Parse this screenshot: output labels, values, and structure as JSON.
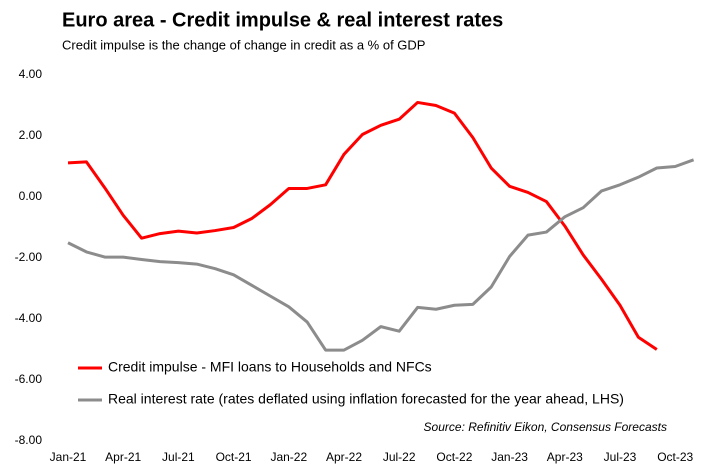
{
  "chart_data": {
    "type": "line",
    "title": "Euro area - Credit impulse & real interest rates",
    "subtitle": "Credit impulse is the change of change in credit as a % of GDP",
    "source": "Source: Refinitiv Eikon, Consensus Forecasts",
    "categories": [
      "Jan-21",
      null,
      null,
      "Apr-21",
      null,
      null,
      "Jul-21",
      null,
      null,
      "Oct-21",
      null,
      null,
      "Jan-22",
      null,
      null,
      "Apr-22",
      null,
      null,
      "Jul-22",
      null,
      null,
      "Oct-22",
      null,
      null,
      "Jan-23",
      null,
      null,
      "Apr-23",
      null,
      null,
      "Jul-23",
      null,
      null,
      "Oct-23",
      null
    ],
    "series": [
      {
        "name": "Credit impulse - MFI loans to Households and NFCs",
        "color": "#ff0000",
        "values": [
          1.12,
          1.15,
          0.3,
          -0.6,
          -1.35,
          -1.2,
          -1.12,
          -1.18,
          -1.1,
          -1.0,
          -0.7,
          -0.25,
          0.28,
          0.28,
          0.4,
          1.4,
          2.05,
          2.35,
          2.55,
          3.1,
          3.0,
          2.75,
          1.95,
          0.95,
          0.35,
          0.15,
          -0.15,
          -0.95,
          -1.9,
          -2.7,
          -3.55,
          -4.6,
          -5.0,
          null,
          null
        ]
      },
      {
        "name": "Real interest rate (rates deflated using inflation forecasted for the year ahead, LHS)",
        "color": "#8c8c8c",
        "values": [
          -1.5,
          -1.8,
          -1.97,
          -1.97,
          -2.05,
          -2.12,
          -2.15,
          -2.2,
          -2.35,
          -2.55,
          -2.9,
          -3.25,
          -3.6,
          -4.1,
          -5.02,
          -5.02,
          -4.7,
          -4.25,
          -4.4,
          -3.62,
          -3.68,
          -3.55,
          -3.52,
          -2.95,
          -1.95,
          -1.25,
          -1.15,
          -0.65,
          -0.35,
          0.2,
          0.4,
          0.65,
          0.95,
          1.0,
          1.22
        ]
      }
    ],
    "ylim": [
      -8,
      4
    ],
    "yticks": [
      {
        "value": 4,
        "label": "4.00"
      },
      {
        "value": 2,
        "label": "2.00"
      },
      {
        "value": 0,
        "label": "0.00"
      },
      {
        "value": -2,
        "label": "-2.00"
      },
      {
        "value": -4,
        "label": "-4.00"
      },
      {
        "value": -6,
        "label": "-6.00"
      },
      {
        "value": -8,
        "label": "-8.00"
      }
    ]
  }
}
